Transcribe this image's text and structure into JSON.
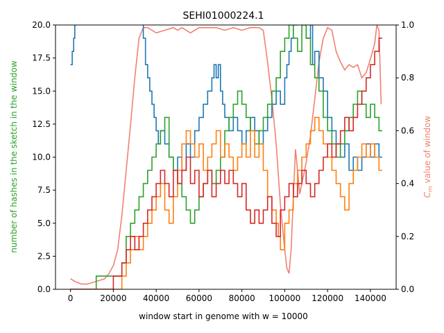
{
  "chart_data": {
    "type": "line",
    "title": "SEHI01000224.1",
    "xlabel": "window start in genome with w = 10000",
    "ylabel_left": "number of hashes in the sketch in the window",
    "ylabel_right": "C_m value of window",
    "xlim": [
      -7000,
      152000
    ],
    "ylim_left": [
      0,
      20
    ],
    "ylim_right": [
      0,
      1
    ],
    "x_ticks": [
      0,
      20000,
      40000,
      60000,
      80000,
      100000,
      120000,
      140000
    ],
    "x_tick_labels": [
      "0",
      "20000",
      "40000",
      "60000",
      "80000",
      "100000",
      "120000",
      "140000"
    ],
    "y_ticks_left": [
      0,
      2.5,
      5,
      7.5,
      10,
      12.5,
      15,
      17.5,
      20
    ],
    "y_tick_labels_left": [
      "0.0",
      "2.5",
      "5.0",
      "7.5",
      "10.0",
      "12.5",
      "15.0",
      "17.5",
      "20.0"
    ],
    "y_ticks_right": [
      0,
      0.2,
      0.4,
      0.6,
      0.8,
      1.0
    ],
    "y_tick_labels_right": [
      "0.0",
      "0.2",
      "0.4",
      "0.6",
      "0.8",
      "1.0"
    ],
    "colors": {
      "blue": "#1f77b4",
      "green": "#2ca02c",
      "orange": "#ff7f0e",
      "red": "#d62728",
      "salmon": "#f08070",
      "left_label": "#2ca02c",
      "right_label": "#f08070"
    },
    "series": [
      {
        "axis": "left",
        "color": "#1f77b4",
        "step": true,
        "x": [
          0,
          800,
          1500,
          2000,
          2500,
          20000,
          24000,
          26000,
          30000,
          32000,
          33000,
          34000,
          35000,
          36000,
          37000,
          38000,
          39000,
          40000,
          41000,
          42000,
          44000,
          46000,
          48000,
          50000,
          52000,
          54000,
          56000,
          58000,
          60000,
          62000,
          64000,
          66000,
          67000,
          68000,
          69000,
          70000,
          71000,
          72000,
          74000,
          76000,
          78000,
          80000,
          82000,
          84000,
          86000,
          88000,
          90000,
          92000,
          94000,
          96000,
          98000,
          100000,
          101000,
          102000,
          103000,
          104000,
          106000,
          108000,
          110000,
          112000,
          113000,
          114000,
          116000,
          118000,
          120000,
          122000,
          124000,
          126000,
          128000,
          130000,
          132000,
          134000,
          136000,
          138000,
          140000,
          142000,
          144000
        ],
        "y": [
          17,
          18,
          19,
          20,
          20.5,
          20.5,
          20.5,
          20.5,
          20.5,
          20.5,
          20.5,
          19,
          17,
          16,
          15,
          14,
          13,
          12,
          11,
          12,
          11,
          10,
          9,
          10,
          9,
          11,
          10,
          12,
          13,
          14,
          15,
          16,
          17,
          16,
          17,
          15,
          14,
          13,
          12,
          13,
          12,
          11,
          12,
          13,
          12,
          11,
          12,
          13,
          14,
          15,
          14,
          16,
          17,
          18,
          19,
          20,
          20.5,
          20,
          19,
          20,
          17,
          18,
          16,
          15,
          13,
          12,
          11,
          10,
          11,
          9,
          10,
          9,
          10,
          11,
          10,
          11,
          10
        ]
      },
      {
        "axis": "left",
        "color": "#2ca02c",
        "step": true,
        "x": [
          0,
          12000,
          20000,
          24000,
          26000,
          28000,
          30000,
          32000,
          34000,
          36000,
          38000,
          40000,
          42000,
          44000,
          46000,
          48000,
          50000,
          52000,
          54000,
          56000,
          58000,
          60000,
          62000,
          64000,
          66000,
          68000,
          70000,
          72000,
          74000,
          76000,
          78000,
          80000,
          82000,
          84000,
          86000,
          88000,
          90000,
          92000,
          94000,
          96000,
          98000,
          100000,
          102000,
          104000,
          106000,
          108000,
          110000,
          112000,
          114000,
          116000,
          118000,
          120000,
          122000,
          124000,
          126000,
          128000,
          130000,
          132000,
          134000,
          136000,
          138000,
          140000,
          142000,
          144000
        ],
        "y": [
          0,
          1,
          1,
          2,
          4,
          5,
          6,
          7,
          8,
          9,
          10,
          11,
          12,
          13,
          10,
          9,
          8,
          7,
          6,
          5,
          6,
          7,
          8,
          9,
          8,
          9,
          10,
          12,
          13,
          14,
          15,
          14,
          13,
          12,
          11,
          12,
          13,
          14,
          15,
          16,
          18,
          19,
          20,
          19,
          18,
          20,
          19,
          17,
          16,
          15,
          13,
          12,
          11,
          10,
          11,
          12,
          13,
          14,
          15,
          14,
          13,
          14,
          13,
          12
        ]
      },
      {
        "axis": "left",
        "color": "#ff7f0e",
        "step": true,
        "x": [
          0,
          24000,
          26000,
          28000,
          30000,
          32000,
          34000,
          36000,
          38000,
          40000,
          42000,
          44000,
          46000,
          48000,
          50000,
          52000,
          54000,
          56000,
          58000,
          60000,
          62000,
          64000,
          66000,
          68000,
          70000,
          72000,
          74000,
          76000,
          78000,
          80000,
          82000,
          84000,
          86000,
          88000,
          90000,
          92000,
          94000,
          96000,
          97000,
          98000,
          100000,
          102000,
          104000,
          106000,
          108000,
          110000,
          112000,
          114000,
          116000,
          118000,
          120000,
          122000,
          124000,
          126000,
          128000,
          130000,
          132000,
          134000,
          136000,
          138000,
          140000,
          142000,
          144000
        ],
        "y": [
          0,
          1,
          2,
          3,
          4,
          3,
          4,
          5,
          6,
          7,
          8,
          6,
          5,
          7,
          9,
          11,
          12,
          11,
          10,
          11,
          9,
          10,
          11,
          12,
          10,
          11,
          10,
          9,
          10,
          11,
          10,
          12,
          10,
          11,
          9,
          7,
          6,
          5,
          4,
          3,
          5,
          6,
          8,
          9,
          10,
          11,
          12,
          13,
          12,
          11,
          10,
          9,
          8,
          7,
          6,
          8,
          9,
          10,
          11,
          10,
          11,
          10,
          9
        ]
      },
      {
        "axis": "left",
        "color": "#d62728",
        "step": true,
        "x": [
          0,
          20000,
          24000,
          26000,
          28000,
          30000,
          32000,
          34000,
          36000,
          38000,
          40000,
          42000,
          44000,
          46000,
          48000,
          50000,
          52000,
          54000,
          56000,
          58000,
          60000,
          62000,
          64000,
          66000,
          68000,
          70000,
          72000,
          74000,
          76000,
          78000,
          80000,
          82000,
          84000,
          86000,
          88000,
          90000,
          92000,
          94000,
          96000,
          98000,
          100000,
          102000,
          104000,
          106000,
          108000,
          110000,
          112000,
          114000,
          116000,
          118000,
          120000,
          122000,
          124000,
          126000,
          128000,
          130000,
          132000,
          134000,
          136000,
          138000,
          140000,
          142000,
          144000
        ],
        "y": [
          0,
          1,
          2,
          3,
          4,
          3,
          4,
          5,
          6,
          7,
          8,
          9,
          8,
          7,
          9,
          8,
          9,
          10,
          8,
          9,
          7,
          8,
          9,
          7,
          8,
          9,
          8,
          9,
          8,
          7,
          8,
          6,
          5,
          6,
          5,
          6,
          7,
          5,
          4,
          6,
          7,
          8,
          7,
          8,
          9,
          8,
          7,
          8,
          9,
          10,
          11,
          10,
          11,
          12,
          13,
          12,
          13,
          14,
          15,
          16,
          17,
          18,
          19
        ]
      },
      {
        "axis": "right",
        "color": "#f08070",
        "step": false,
        "x": [
          0,
          2000,
          5000,
          8000,
          12000,
          16000,
          18000,
          20000,
          22000,
          24000,
          26000,
          28000,
          30000,
          32000,
          34000,
          36000,
          38000,
          40000,
          44000,
          48000,
          50000,
          52000,
          56000,
          60000,
          64000,
          68000,
          72000,
          76000,
          80000,
          84000,
          88000,
          90000,
          92000,
          94000,
          96000,
          98000,
          100000,
          101000,
          102000,
          103000,
          104000,
          105000,
          106000,
          107000,
          108000,
          110000,
          112000,
          114000,
          116000,
          118000,
          120000,
          122000,
          124000,
          126000,
          128000,
          130000,
          132000,
          134000,
          136000,
          138000,
          140000,
          142000,
          143000,
          144000,
          145000
        ],
        "y": [
          0.04,
          0.03,
          0.02,
          0.02,
          0.03,
          0.04,
          0.06,
          0.09,
          0.15,
          0.28,
          0.45,
          0.62,
          0.8,
          0.95,
          0.99,
          0.99,
          0.98,
          0.97,
          0.98,
          0.99,
          0.98,
          0.99,
          0.97,
          0.99,
          0.99,
          0.99,
          0.98,
          0.99,
          0.98,
          0.99,
          0.99,
          0.98,
          0.86,
          0.72,
          0.55,
          0.32,
          0.15,
          0.08,
          0.06,
          0.15,
          0.35,
          0.53,
          0.45,
          0.36,
          0.4,
          0.48,
          0.58,
          0.72,
          0.86,
          0.95,
          0.99,
          0.98,
          0.9,
          0.86,
          0.83,
          0.85,
          0.84,
          0.85,
          0.8,
          0.82,
          0.87,
          0.93,
          1.0,
          0.98,
          0.7
        ]
      }
    ]
  }
}
